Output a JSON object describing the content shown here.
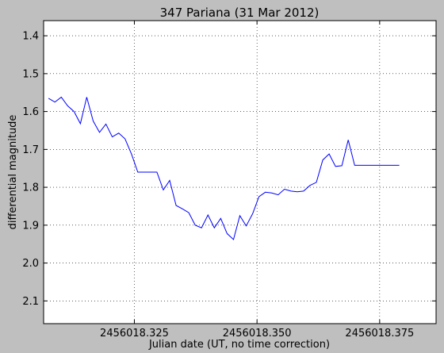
{
  "chart_data": {
    "type": "line",
    "title": "347 Pariana (31 Mar 2012)",
    "xlabel": "Julian date (UT, no time correction)",
    "ylabel": "differential magnitude",
    "xlim": [
      2456018.3065,
      2456018.3865
    ],
    "ylim": [
      2.16,
      1.36
    ],
    "y_inverted": true,
    "grid": true,
    "x_ticks": [
      2456018.325,
      2456018.35,
      2456018.375
    ],
    "x_tick_labels": [
      "2456018.325",
      "2456018.350",
      "2456018.375"
    ],
    "y_ticks": [
      1.4,
      1.5,
      1.6,
      1.7,
      1.8,
      1.9,
      2.0,
      2.1
    ],
    "y_tick_labels": [
      "1.4",
      "1.5",
      "1.6",
      "1.7",
      "1.8",
      "1.9",
      "2.0",
      "2.1"
    ],
    "series_color": "#0000ff",
    "x": [
      2456018.3075,
      2456018.3088,
      2456018.3101,
      2456018.3114,
      2456018.3127,
      2456018.314,
      2456018.3153,
      2456018.3166,
      2456018.3179,
      2456018.3192,
      2456018.3205,
      2456018.3218,
      2456018.3231,
      2456018.3244,
      2456018.3257,
      2456018.327,
      2456018.3283,
      2456018.3296,
      2456018.3309,
      2456018.3322,
      2456018.3335,
      2456018.3348,
      2456018.3361,
      2456018.3374,
      2456018.3387,
      2456018.34,
      2456018.3413,
      2456018.3426,
      2456018.3439,
      2456018.3452,
      2456018.3465,
      2456018.3478,
      2456018.3491,
      2456018.3504,
      2456018.3517,
      2456018.353,
      2456018.3543,
      2456018.3556,
      2456018.3569,
      2456018.3582,
      2456018.3595,
      2456018.3608,
      2456018.3621,
      2456018.3634,
      2456018.3647,
      2456018.366,
      2456018.3673,
      2456018.3686,
      2456018.3699,
      2456018.3712,
      2456018.3725,
      2456018.3738,
      2456018.3751,
      2456018.3764,
      2456018.3777,
      2456018.379
    ],
    "y": [
      1.565,
      1.575,
      1.562,
      1.585,
      1.6,
      1.632,
      1.562,
      1.625,
      1.655,
      1.633,
      1.667,
      1.657,
      1.672,
      1.712,
      1.76,
      1.76,
      1.76,
      1.76,
      1.807,
      1.782,
      1.848,
      1.857,
      1.867,
      1.9,
      1.907,
      1.873,
      1.907,
      1.882,
      1.922,
      1.938,
      1.875,
      1.902,
      1.87,
      1.825,
      1.813,
      1.815,
      1.82,
      1.805,
      1.81,
      1.812,
      1.81,
      1.795,
      1.787,
      1.728,
      1.712,
      1.745,
      1.743,
      1.675,
      1.742,
      1.742,
      1.742,
      1.742,
      1.742,
      1.742,
      1.742,
      1.742
    ]
  }
}
